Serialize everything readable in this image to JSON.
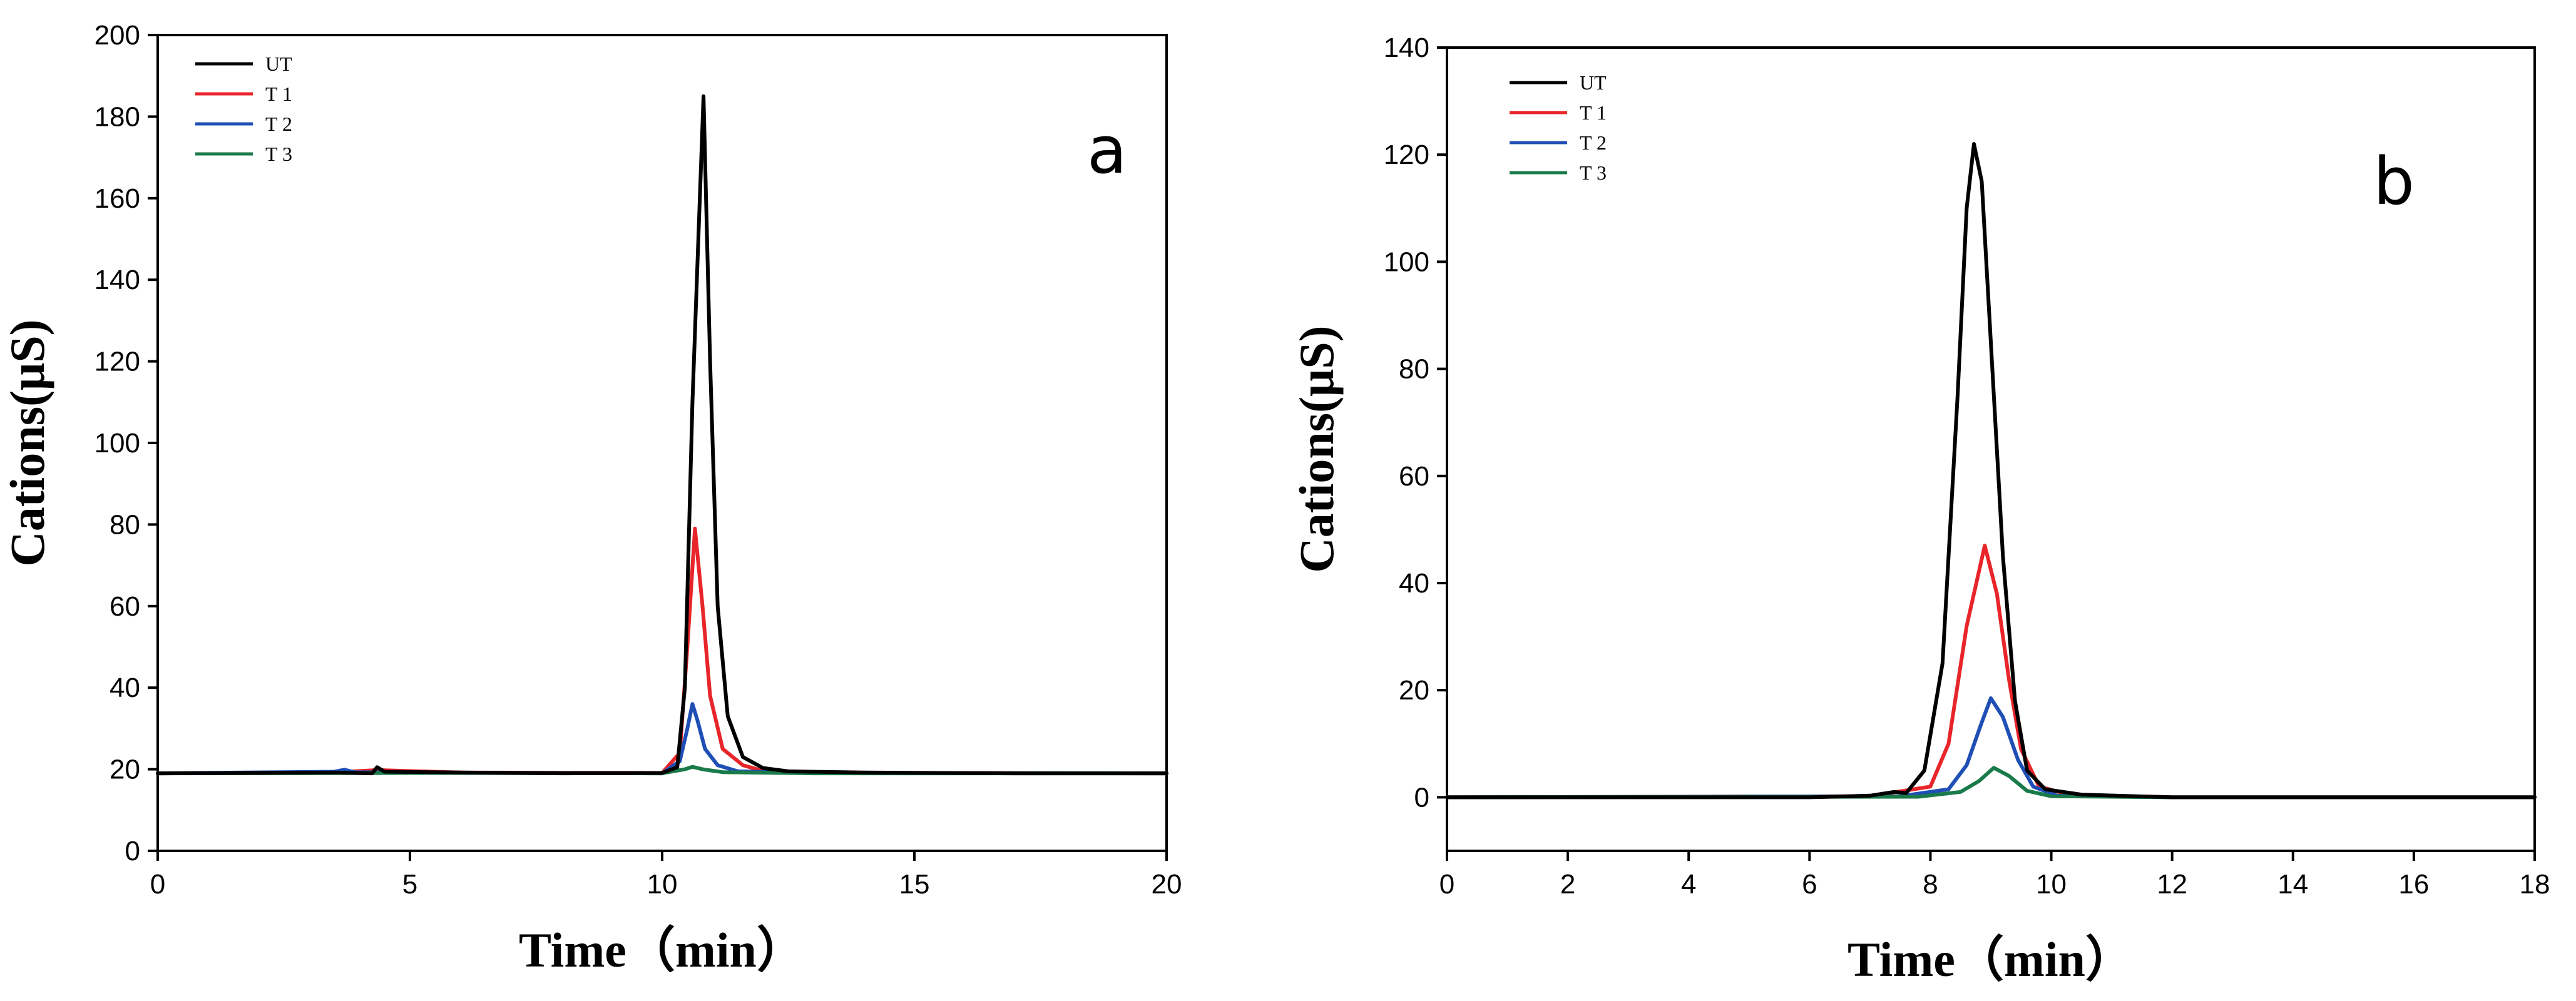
{
  "chart_data": [
    {
      "type": "line",
      "panel_label": "a",
      "xlabel": "Time（min）",
      "ylabel": "Cations(μS)",
      "xlim": [
        0,
        20
      ],
      "ylim": [
        0,
        200
      ],
      "x_ticks": [
        0,
        5,
        10,
        15,
        20
      ],
      "y_ticks": [
        0,
        20,
        40,
        60,
        80,
        100,
        120,
        140,
        160,
        180,
        200
      ],
      "legend_position": "top-left",
      "grid": false,
      "series": [
        {
          "name": "UT",
          "color": "#000000",
          "points": [
            [
              0,
              19
            ],
            [
              3.5,
              19.2
            ],
            [
              4.25,
              19
            ],
            [
              4.35,
              20.5
            ],
            [
              4.5,
              19.4
            ],
            [
              6,
              19.2
            ],
            [
              8,
              19
            ],
            [
              10,
              19.1
            ],
            [
              10.3,
              20.5
            ],
            [
              10.45,
              40
            ],
            [
              10.6,
              110
            ],
            [
              10.82,
              185
            ],
            [
              10.95,
              120
            ],
            [
              11.1,
              60
            ],
            [
              11.3,
              33
            ],
            [
              11.6,
              23
            ],
            [
              12,
              20.3
            ],
            [
              12.5,
              19.5
            ],
            [
              14,
              19.2
            ],
            [
              17,
              19
            ],
            [
              20,
              19
            ]
          ]
        },
        {
          "name": "T 1",
          "color": "#e8252a",
          "points": [
            [
              0,
              19
            ],
            [
              3.5,
              19.2
            ],
            [
              4.35,
              19.8
            ],
            [
              6,
              19.2
            ],
            [
              10,
              19.1
            ],
            [
              10.35,
              24
            ],
            [
              10.5,
              50
            ],
            [
              10.65,
              79
            ],
            [
              10.8,
              60
            ],
            [
              10.95,
              38
            ],
            [
              11.2,
              25
            ],
            [
              11.6,
              21
            ],
            [
              12,
              19.6
            ],
            [
              14,
              19.1
            ],
            [
              20,
              19
            ]
          ]
        },
        {
          "name": "T 2",
          "color": "#1f4fb5",
          "points": [
            [
              0,
              19
            ],
            [
              3.5,
              19.4
            ],
            [
              3.7,
              19.9
            ],
            [
              3.9,
              19.3
            ],
            [
              6,
              19.1
            ],
            [
              10,
              19
            ],
            [
              10.35,
              22
            ],
            [
              10.5,
              30
            ],
            [
              10.6,
              36
            ],
            [
              10.7,
              32
            ],
            [
              10.85,
              25
            ],
            [
              11.1,
              21
            ],
            [
              11.5,
              19.5
            ],
            [
              13,
              19.1
            ],
            [
              20,
              19
            ]
          ]
        },
        {
          "name": "T 3",
          "color": "#1a7a4a",
          "points": [
            [
              0,
              19
            ],
            [
              6,
              19.1
            ],
            [
              10,
              19
            ],
            [
              10.45,
              20
            ],
            [
              10.6,
              20.6
            ],
            [
              10.8,
              20
            ],
            [
              11.2,
              19.3
            ],
            [
              13,
              19
            ],
            [
              20,
              19
            ]
          ]
        }
      ]
    },
    {
      "type": "line",
      "panel_label": "b",
      "xlabel": "Time（min）",
      "ylabel": "Cations(μS)",
      "xlim": [
        0,
        18
      ],
      "ylim": [
        -10,
        140
      ],
      "x_ticks": [
        0,
        2,
        4,
        6,
        8,
        10,
        12,
        14,
        16,
        18
      ],
      "y_ticks": [
        0,
        20,
        40,
        60,
        80,
        100,
        120,
        140
      ],
      "legend_position": "top-left",
      "grid": false,
      "series": [
        {
          "name": "UT",
          "color": "#000000",
          "points": [
            [
              0,
              0
            ],
            [
              6,
              0
            ],
            [
              7,
              0.3
            ],
            [
              7.4,
              1
            ],
            [
              7.6,
              0.8
            ],
            [
              7.9,
              5
            ],
            [
              8.2,
              25
            ],
            [
              8.45,
              75
            ],
            [
              8.6,
              110
            ],
            [
              8.72,
              122
            ],
            [
              8.85,
              115
            ],
            [
              9.0,
              85
            ],
            [
              9.2,
              45
            ],
            [
              9.4,
              18
            ],
            [
              9.6,
              5
            ],
            [
              9.9,
              1.5
            ],
            [
              10.5,
              0.5
            ],
            [
              12,
              0
            ],
            [
              18,
              0
            ]
          ]
        },
        {
          "name": "T 1",
          "color": "#e8252a",
          "points": [
            [
              0,
              0
            ],
            [
              7,
              0.2
            ],
            [
              8,
              2
            ],
            [
              8.3,
              10
            ],
            [
              8.6,
              32
            ],
            [
              8.9,
              47
            ],
            [
              9.1,
              38
            ],
            [
              9.3,
              22
            ],
            [
              9.5,
              9
            ],
            [
              9.8,
              2
            ],
            [
              10.3,
              0.5
            ],
            [
              12,
              0
            ],
            [
              18,
              0
            ]
          ]
        },
        {
          "name": "T 2",
          "color": "#1f4fb5",
          "points": [
            [
              0,
              0
            ],
            [
              7.5,
              0.2
            ],
            [
              8.3,
              1.5
            ],
            [
              8.6,
              6
            ],
            [
              8.85,
              14
            ],
            [
              9.0,
              18.5
            ],
            [
              9.2,
              15
            ],
            [
              9.45,
              7
            ],
            [
              9.7,
              2
            ],
            [
              10.1,
              0.3
            ],
            [
              12,
              0
            ],
            [
              18,
              0
            ]
          ]
        },
        {
          "name": "T 3",
          "color": "#1a7a4a",
          "points": [
            [
              0,
              0
            ],
            [
              7.8,
              0.1
            ],
            [
              8.5,
              1
            ],
            [
              8.8,
              3
            ],
            [
              9.05,
              5.5
            ],
            [
              9.3,
              4
            ],
            [
              9.6,
              1.2
            ],
            [
              10,
              0.2
            ],
            [
              12,
              0
            ],
            [
              18,
              0
            ]
          ]
        }
      ]
    }
  ]
}
